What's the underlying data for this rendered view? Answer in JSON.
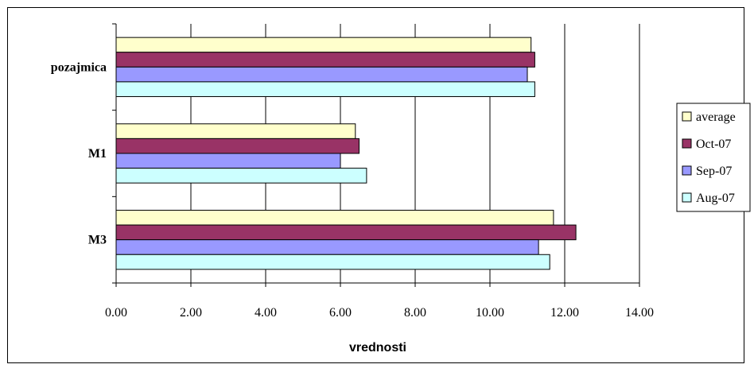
{
  "chart_data": {
    "type": "bar",
    "orientation": "horizontal",
    "categories": [
      "pozajmica",
      "M1",
      "M3"
    ],
    "series": [
      {
        "name": "average",
        "color": "#FFFFCC",
        "values": [
          11.1,
          6.4,
          11.7
        ]
      },
      {
        "name": "Oct-07",
        "color": "#993366",
        "values": [
          11.2,
          6.5,
          12.3
        ]
      },
      {
        "name": "Sep-07",
        "color": "#9999FF",
        "values": [
          11.0,
          6.0,
          11.3
        ]
      },
      {
        "name": "Aug-07",
        "color": "#CCFFFF",
        "values": [
          11.2,
          6.7,
          11.6
        ]
      }
    ],
    "xlabel": "vrednosti",
    "ylabel": "",
    "xlim": [
      0,
      14
    ],
    "xticks": [
      "0.00",
      "2.00",
      "4.00",
      "6.00",
      "8.00",
      "10.00",
      "12.00",
      "14.00"
    ],
    "grid": true,
    "legend_position": "right",
    "legend_order": [
      "average",
      "Oct-07",
      "Sep-07",
      "Aug-07"
    ]
  }
}
